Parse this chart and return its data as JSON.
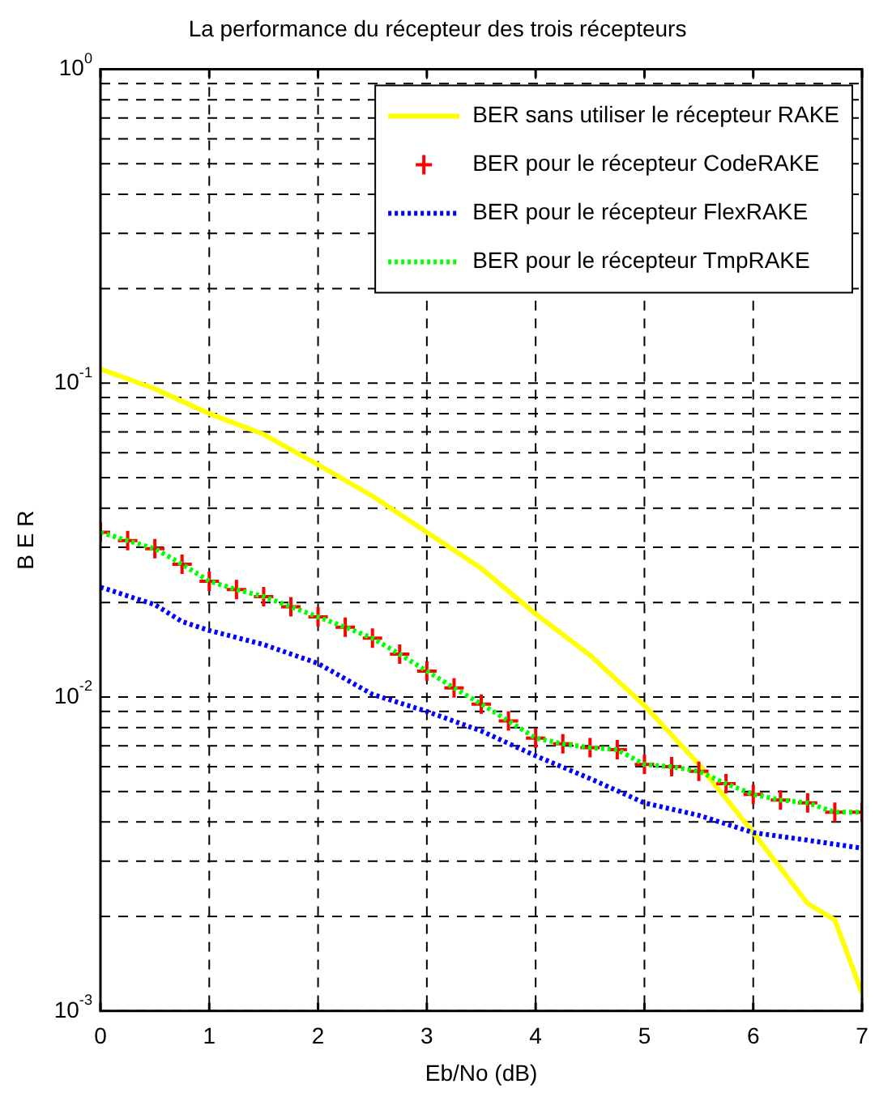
{
  "chart_data": {
    "type": "line",
    "title": "La performance du récepteur des trois récepteurs",
    "xlabel": "Eb/No (dB)",
    "ylabel": "B E R",
    "log": "y",
    "grid": true,
    "legend": "top right",
    "xlim": [
      0,
      7
    ],
    "xticks": [
      0,
      1,
      2,
      3,
      4,
      5,
      6,
      7
    ],
    "ylim": [
      0.001,
      1
    ],
    "yticks": [
      {
        "value": 0.001,
        "label": "10$^{-3}$"
      },
      {
        "value": 0.01,
        "label": "10$^{-2}$"
      },
      {
        "value": 0.1,
        "label": "10$^{-1}$"
      },
      {
        "value": 1,
        "label": "10$^{0}$"
      }
    ],
    "series": [
      {
        "name": "BER sans utiliser le récepteur RAKE",
        "color": "#ffff00",
        "line_style": "solid",
        "marker": "none",
        "x": [
          0,
          0.5,
          1,
          1.5,
          2,
          2.5,
          3,
          3.5,
          4,
          4.5,
          5,
          5.5,
          6,
          6.5,
          6.75,
          7
        ],
        "values": [
          0.111,
          0.096,
          0.08,
          0.0687,
          0.055,
          0.0437,
          0.0335,
          0.0257,
          0.0184,
          0.0136,
          0.0094,
          0.0061,
          0.0037,
          0.0022,
          0.00195,
          0.00114
        ]
      },
      {
        "name": "BER pour le récepteur CodeRAKE",
        "type": "scatter",
        "color": "#ff0000",
        "marker": "cross",
        "x": [
          0,
          0.25,
          0.5,
          0.75,
          1,
          1.25,
          1.5,
          1.75,
          2,
          2.25,
          2.5,
          2.75,
          3,
          3.25,
          3.5,
          3.75,
          4,
          4.25,
          4.5,
          4.75,
          5,
          5.25,
          5.5,
          5.75,
          6,
          6.25,
          6.5,
          6.75,
          7
        ],
        "values": [
          0.0335,
          0.0315,
          0.0297,
          0.0265,
          0.0234,
          0.022,
          0.0209,
          0.0194,
          0.018,
          0.0167,
          0.0154,
          0.0137,
          0.0121,
          0.0107,
          0.0095,
          0.0084,
          0.0074,
          0.0071,
          0.0069,
          0.0068,
          0.0061,
          0.006,
          0.0058,
          0.0053,
          0.0049,
          0.0047,
          0.0046,
          0.0043,
          0.0043
        ]
      },
      {
        "name": "BER pour le récepteur FlexRAKE",
        "color": "#0000ff",
        "line_style": "dotted",
        "marker": "none",
        "x": [
          0,
          0.5,
          0.75,
          1,
          1.5,
          2,
          2.5,
          3,
          3.5,
          4,
          4.5,
          5,
          5.5,
          6,
          6.5,
          7
        ],
        "values": [
          0.0224,
          0.0197,
          0.0174,
          0.0163,
          0.0147,
          0.0128,
          0.0102,
          0.009,
          0.0078,
          0.0065,
          0.0055,
          0.0046,
          0.0042,
          0.0037,
          0.0035,
          0.0033
        ]
      },
      {
        "name": "BER pour le récepteur TmpRAKE",
        "color": "#00ff00",
        "line_style": "dotted",
        "marker": "none",
        "x": [
          0,
          0.25,
          0.5,
          0.75,
          1,
          1.25,
          1.5,
          1.75,
          2,
          2.25,
          2.5,
          2.75,
          3,
          3.25,
          3.5,
          3.75,
          4,
          4.25,
          4.5,
          4.75,
          5,
          5.25,
          5.5,
          5.75,
          6,
          6.25,
          6.5,
          6.75,
          7
        ],
        "values": [
          0.0335,
          0.0315,
          0.0297,
          0.0265,
          0.0234,
          0.022,
          0.0209,
          0.0194,
          0.018,
          0.0167,
          0.0154,
          0.0137,
          0.0121,
          0.0107,
          0.0095,
          0.0084,
          0.0074,
          0.0071,
          0.0069,
          0.0068,
          0.0061,
          0.006,
          0.0058,
          0.0053,
          0.0049,
          0.0047,
          0.0046,
          0.0043,
          0.0043
        ]
      }
    ]
  }
}
